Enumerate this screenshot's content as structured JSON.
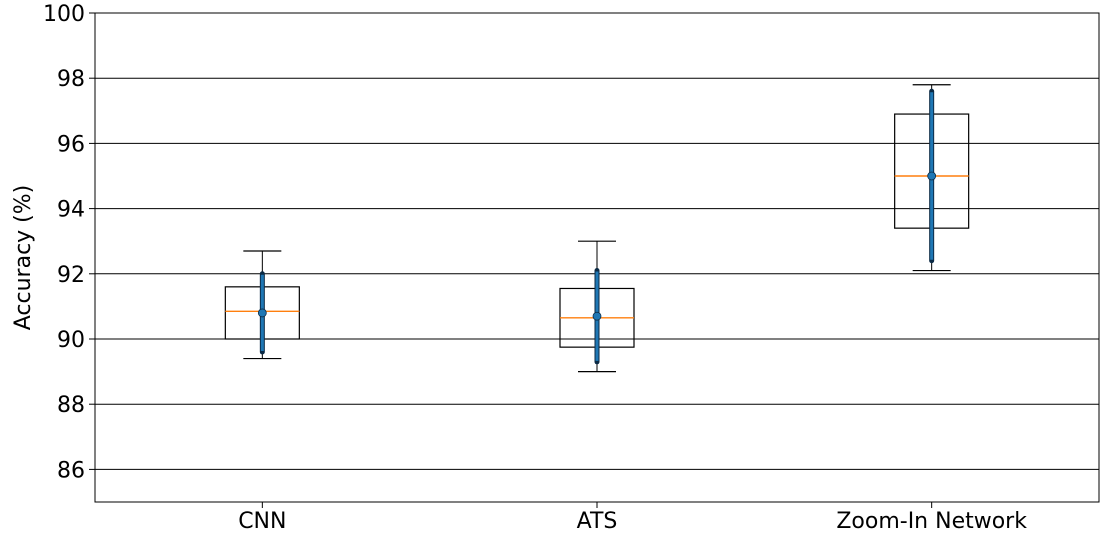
{
  "chart_data": {
    "type": "box",
    "title": "",
    "xlabel": "",
    "ylabel": "Accuracy (%)",
    "ylim": [
      85,
      100
    ],
    "yticks": [
      86,
      88,
      90,
      92,
      94,
      96,
      98,
      100
    ],
    "grid": "horizontal",
    "categories": [
      "CNN",
      "ATS",
      "Zoom-In Network"
    ],
    "boxes": [
      {
        "category": "CNN",
        "whisker_low": 89.4,
        "q1": 90.0,
        "median": 90.85,
        "q3": 91.6,
        "whisker_high": 92.7,
        "mean": 90.8,
        "error_low": 89.6,
        "error_high": 92.0
      },
      {
        "category": "ATS",
        "whisker_low": 89.0,
        "q1": 89.75,
        "median": 90.65,
        "q3": 91.55,
        "whisker_high": 93.0,
        "mean": 90.7,
        "error_low": 89.3,
        "error_high": 92.1
      },
      {
        "category": "Zoom-In Network",
        "whisker_low": 92.1,
        "q1": 93.4,
        "median": 95.0,
        "q3": 96.9,
        "whisker_high": 97.8,
        "mean": 95.0,
        "error_low": 92.4,
        "error_high": 97.6
      }
    ],
    "colors": {
      "box": "#000000",
      "median": "#ff7f0e",
      "errorbar": "#1f77b4",
      "errorbar_outline": "#0b2a45",
      "grid": "#000000"
    }
  }
}
